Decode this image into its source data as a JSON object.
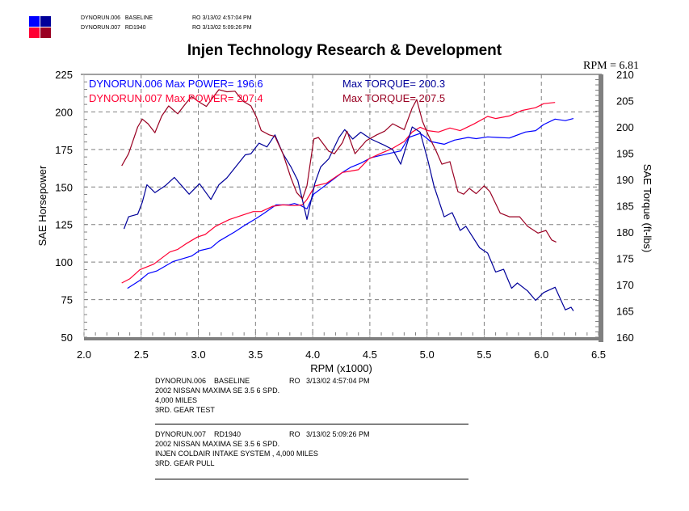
{
  "header": {
    "swatch_colors": [
      "#0000ff",
      "#000099",
      "#ff0033",
      "#990022"
    ],
    "runs": [
      {
        "run": "DYNORUN.006",
        "name": "BASELINE",
        "stamp": "RO 3/13/02 4:57:04 PM"
      },
      {
        "run": "DYNORUN.007",
        "name": "RD1940",
        "stamp": "RO 3/13/02 5:09:26 PM"
      }
    ]
  },
  "rpm_readout": "RPM = 6.81",
  "legend": {
    "power": [
      "DYNORUN.006  Max POWER= 196.6",
      "DYNORUN.007  Max POWER= 207.4"
    ],
    "torque": [
      "Max TORQUE= 200.3",
      "Max TORQUE= 207.5"
    ]
  },
  "chart_data": {
    "type": "line",
    "title": "Injen Technology Research & Development",
    "xlabel": "RPM (x1000)",
    "ylabel": "SAE Horsepower",
    "y2label": "SAE Torque (ft-lbs)",
    "xlim": [
      2.0,
      6.5
    ],
    "ylim": [
      50,
      225
    ],
    "y2lim": [
      160,
      210
    ],
    "xticks": [
      "2.0",
      "2.5",
      "3.0",
      "3.5",
      "4.0",
      "4.5",
      "5.0",
      "5.5",
      "6.0",
      "6.5"
    ],
    "yticks": [
      "50",
      "75",
      "100",
      "125",
      "150",
      "175",
      "200",
      "225"
    ],
    "y2ticks": [
      "160",
      "165",
      "170",
      "175",
      "180",
      "185",
      "190",
      "195",
      "200",
      "205",
      "210"
    ],
    "grid": true,
    "series": [
      {
        "name": "DYNORUN.006 POWER",
        "axis": "left",
        "color": "#0000ff",
        "x": [
          2.38,
          2.49,
          2.56,
          2.64,
          2.78,
          2.94,
          3.01,
          3.11,
          3.18,
          3.32,
          3.41,
          3.51,
          3.58,
          3.68,
          3.79,
          3.84,
          3.89,
          3.95,
          4.01,
          4.12,
          4.26,
          4.33,
          4.42,
          4.51,
          4.66,
          4.77,
          4.84,
          4.94,
          4.99,
          5.03,
          5.15,
          5.24,
          5.36,
          5.43,
          5.53,
          5.62,
          5.72,
          5.86,
          5.95,
          6.02,
          6.12,
          6.21,
          6.28
        ],
        "y": [
          82.5,
          87.9,
          92.4,
          94.2,
          100.4,
          104,
          107.6,
          109.4,
          113.9,
          120.2,
          124.7,
          129.2,
          132.8,
          138.1,
          138.1,
          139,
          137.8,
          135.4,
          145.3,
          151.6,
          159.7,
          163,
          165.9,
          169.5,
          172.2,
          174,
          183,
          185.7,
          183,
          180.3,
          178.5,
          181.2,
          183,
          182.2,
          183.4,
          183,
          182.6,
          186.6,
          187.5,
          191.6,
          195.2,
          194.2,
          195.6
        ]
      },
      {
        "name": "DYNORUN.007 POWER",
        "axis": "left",
        "color": "#ff0033",
        "x": [
          2.33,
          2.4,
          2.49,
          2.61,
          2.75,
          2.82,
          2.89,
          2.99,
          3.06,
          3.15,
          3.27,
          3.41,
          3.48,
          3.55,
          3.65,
          3.74,
          3.84,
          3.91,
          3.95,
          4.02,
          4.12,
          4.26,
          4.33,
          4.4,
          4.49,
          4.59,
          4.7,
          4.8,
          4.87,
          4.94,
          5.01,
          5.1,
          5.2,
          5.29,
          5.41,
          5.53,
          5.6,
          5.72,
          5.83,
          5.95,
          6.02,
          6.12
        ],
        "y": [
          86.1,
          88.8,
          95,
          98.6,
          106.7,
          108.5,
          112.1,
          116.6,
          118.4,
          123.8,
          128.3,
          131.9,
          133.6,
          133.6,
          137.2,
          138.1,
          137.6,
          138.1,
          141.7,
          150.7,
          152.5,
          159.7,
          160.6,
          161.5,
          168.7,
          172.2,
          175.8,
          180.3,
          186.6,
          189.8,
          187.5,
          186.6,
          189.3,
          187.5,
          192,
          197,
          195.6,
          197.3,
          201,
          202.8,
          205.5,
          206.3
        ]
      },
      {
        "name": "DYNORUN.006 TORQUE",
        "axis": "right",
        "color": "#000099",
        "x": [
          2.35,
          2.39,
          2.47,
          2.51,
          2.55,
          2.62,
          2.71,
          2.79,
          2.92,
          3.01,
          3.11,
          3.18,
          3.25,
          3.41,
          3.46,
          3.53,
          3.6,
          3.67,
          3.74,
          3.81,
          3.87,
          3.92,
          3.95,
          4.02,
          4.07,
          4.14,
          4.23,
          4.28,
          4.35,
          4.42,
          4.51,
          4.63,
          4.7,
          4.77,
          4.87,
          4.94,
          5.01,
          5.06,
          5.15,
          5.22,
          5.29,
          5.34,
          5.46,
          5.53,
          5.6,
          5.67,
          5.74,
          5.79,
          5.88,
          5.95,
          6.02,
          6.12,
          6.21,
          6.26,
          6.28
        ],
        "y": [
          180.6,
          182.9,
          183.4,
          185.7,
          189,
          187.5,
          188.8,
          190.4,
          187.2,
          189.2,
          186.2,
          189,
          190.3,
          194.7,
          194.9,
          196.9,
          196.2,
          198.5,
          194.9,
          192.4,
          189.8,
          185.2,
          182.4,
          189.3,
          192.4,
          193.9,
          198,
          199.5,
          197.7,
          199,
          197.7,
          196.5,
          195.7,
          192.9,
          200,
          199,
          193.4,
          188.8,
          182.9,
          183.7,
          180.3,
          181.1,
          177,
          176,
          172.4,
          172.9,
          169.3,
          170.3,
          168.8,
          167,
          168.5,
          169.5,
          165.2,
          165.7,
          165
        ]
      },
      {
        "name": "DYNORUN.007 TORQUE",
        "axis": "right",
        "color": "#990022",
        "x": [
          2.33,
          2.39,
          2.47,
          2.51,
          2.56,
          2.62,
          2.68,
          2.74,
          2.82,
          2.88,
          2.94,
          3.01,
          3.07,
          3.13,
          3.18,
          3.25,
          3.32,
          3.39,
          3.46,
          3.51,
          3.55,
          3.62,
          3.67,
          3.74,
          3.81,
          3.86,
          3.91,
          3.95,
          4.01,
          4.05,
          4.14,
          4.19,
          4.26,
          4.3,
          4.37,
          4.47,
          4.56,
          4.63,
          4.7,
          4.8,
          4.87,
          4.91,
          4.96,
          5.01,
          5.08,
          5.13,
          5.2,
          5.27,
          5.32,
          5.37,
          5.43,
          5.5,
          5.55,
          5.64,
          5.72,
          5.81,
          5.88,
          5.97,
          6.04,
          6.09,
          6.13
        ],
        "y": [
          192.6,
          194.9,
          200,
          201.5,
          200.6,
          198.9,
          202.1,
          204,
          202.5,
          204.2,
          205.8,
          204.7,
          203.9,
          205.7,
          207.1,
          206.7,
          206.8,
          204.9,
          204,
          201.8,
          199.3,
          198.5,
          198.2,
          194.9,
          190.3,
          187.5,
          186.3,
          188.8,
          197.7,
          198,
          195.4,
          194.9,
          197,
          199.2,
          194.9,
          197.4,
          198.5,
          199.2,
          200.6,
          199.5,
          203.6,
          205.2,
          201.1,
          198.5,
          195.4,
          192.9,
          193.4,
          187.7,
          187.2,
          188.3,
          187.3,
          188.8,
          187.7,
          183.6,
          182.9,
          182.9,
          181.1,
          179.8,
          180.3,
          178.5,
          178.1
        ]
      }
    ]
  },
  "notes": [
    {
      "run": "DYNORUN.006",
      "name": "BASELINE",
      "stamp": "RO   3/13/02 4:57:04 PM",
      "lines": [
        "2002 NISSAN MAXIMA SE 3.5 6 SPD.",
        "4,000 MILES",
        "3RD. GEAR TEST"
      ]
    },
    {
      "run": "DYNORUN.007",
      "name": "RD1940",
      "stamp": "RO   3/13/02 5:09:26 PM",
      "lines": [
        "2002 NISSAN MAXIMA SE 3.5 6 SPD.",
        "INJEN COLDAIR INTAKE SYSTEM , 4,000 MILES",
        "3RD. GEAR PULL"
      ]
    }
  ]
}
